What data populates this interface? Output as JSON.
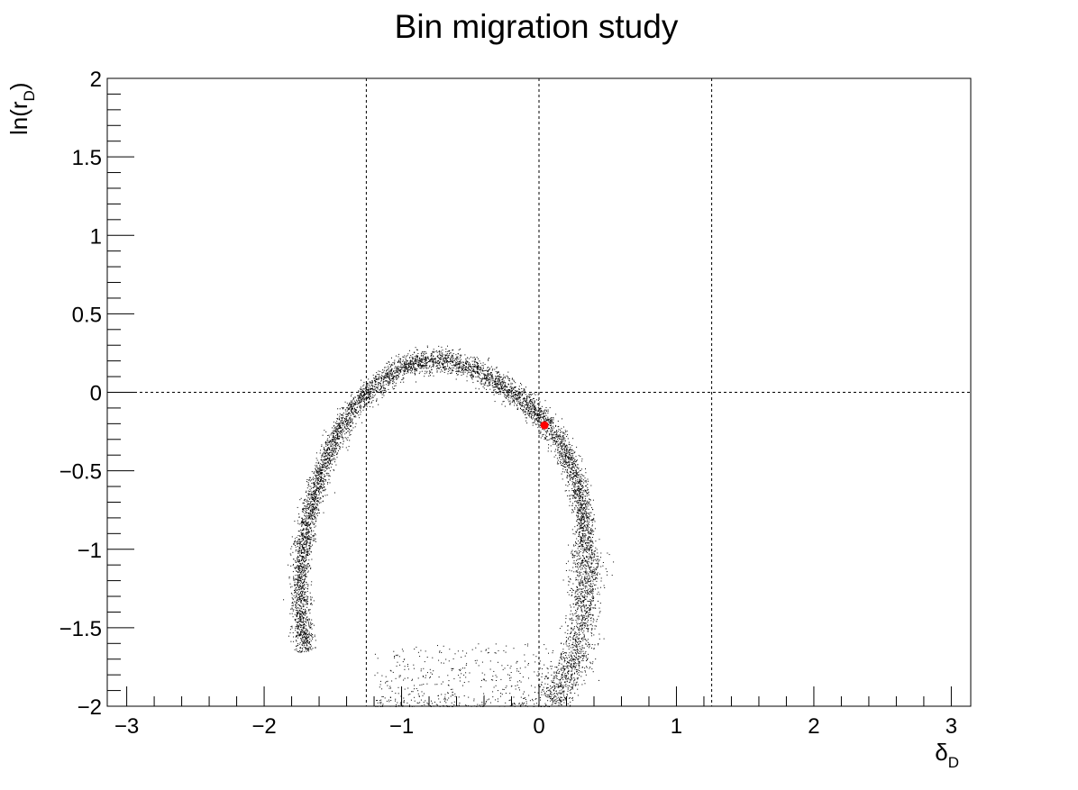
{
  "chart_data": {
    "type": "scatter",
    "title": "Bin migration study",
    "xlabel": {
      "base": "δ",
      "sub": "D"
    },
    "ylabel": {
      "base": "ln(r",
      "sub": "D",
      "close": ")"
    },
    "xlim": [
      -3.14159,
      3.14159
    ],
    "ylim": [
      -2,
      2
    ],
    "x_ticks": [
      {
        "v": -3,
        "label": "−3"
      },
      {
        "v": -2,
        "label": "−2"
      },
      {
        "v": -1,
        "label": "−1"
      },
      {
        "v": 0,
        "label": "0"
      },
      {
        "v": 1,
        "label": "1"
      },
      {
        "v": 2,
        "label": "2"
      },
      {
        "v": 3,
        "label": "3"
      }
    ],
    "y_ticks": [
      {
        "v": -2,
        "label": "−2"
      },
      {
        "v": -1.5,
        "label": "−1.5"
      },
      {
        "v": -1,
        "label": "−1"
      },
      {
        "v": -0.5,
        "label": "−0.5"
      },
      {
        "v": 0,
        "label": "0"
      },
      {
        "v": 0.5,
        "label": "0.5"
      },
      {
        "v": 1,
        "label": "1"
      },
      {
        "v": 1.5,
        "label": "1.5"
      },
      {
        "v": 2,
        "label": "2"
      }
    ],
    "dashed_lines": {
      "vertical": [
        -1.2566,
        0.0,
        1.2566
      ],
      "horizontal": [
        0.0
      ]
    },
    "marker": {
      "x": 0.04,
      "y": -0.21,
      "color": "#ff0000"
    },
    "series": [
      {
        "color": "#000000",
        "arc_points": [
          [
            -1.7,
            -1.65
          ],
          [
            -1.73,
            -1.45
          ],
          [
            -1.74,
            -1.2
          ],
          [
            -1.72,
            -1.0
          ],
          [
            -1.68,
            -0.8
          ],
          [
            -1.62,
            -0.6
          ],
          [
            -1.55,
            -0.42
          ],
          [
            -1.47,
            -0.26
          ],
          [
            -1.38,
            -0.12
          ],
          [
            -1.28,
            -0.02
          ],
          [
            -1.16,
            0.07
          ],
          [
            -1.02,
            0.15
          ],
          [
            -0.86,
            0.2
          ],
          [
            -0.7,
            0.21
          ],
          [
            -0.55,
            0.18
          ],
          [
            -0.4,
            0.12
          ],
          [
            -0.26,
            0.04
          ],
          [
            -0.13,
            -0.04
          ],
          [
            -0.02,
            -0.13
          ],
          [
            0.08,
            -0.22
          ],
          [
            0.16,
            -0.33
          ],
          [
            0.24,
            -0.48
          ],
          [
            0.3,
            -0.66
          ],
          [
            0.33,
            -0.86
          ],
          [
            0.34,
            -1.06
          ],
          [
            0.34,
            -1.26
          ],
          [
            0.32,
            -1.46
          ],
          [
            0.28,
            -1.62
          ],
          [
            0.22,
            -1.76
          ],
          [
            0.16,
            -1.88
          ],
          [
            0.1,
            -1.97
          ]
        ],
        "point_count": 7000
      },
      {
        "color": "#000000",
        "sparse_region": {
          "x": [
            -1.2,
            0.1
          ],
          "y": [
            -2.0,
            -1.6
          ]
        },
        "point_count": 500
      }
    ]
  }
}
